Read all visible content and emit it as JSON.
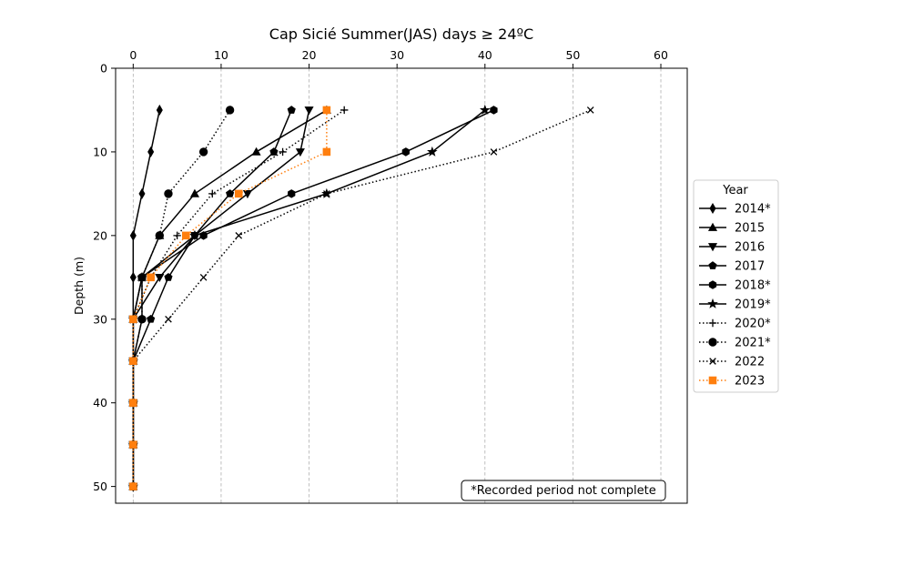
{
  "chart_data": {
    "type": "line",
    "title": "Cap Sicié Summer(JAS) days ≥ 24ºC",
    "xlabel": "",
    "ylabel": "Depth (m)",
    "x_axis_position": "top",
    "y_inverted": true,
    "xlim": [
      -2,
      63
    ],
    "ylim": [
      52,
      0
    ],
    "xticks": [
      0,
      10,
      20,
      30,
      40,
      50,
      60
    ],
    "yticks": [
      0,
      10,
      20,
      30,
      40,
      50
    ],
    "x_grid": "dashed-vertical",
    "depths": [
      5,
      10,
      15,
      20,
      25,
      30,
      35,
      40,
      45,
      50
    ],
    "legend_title": "Year",
    "legend_position": "right-outside",
    "annotation": "*Recorded period not complete",
    "series": [
      {
        "name": "2014*",
        "marker": "diamond",
        "style": "solid",
        "color": "#000000",
        "values": [
          3,
          2,
          1,
          0,
          0,
          0,
          0,
          0,
          0,
          0
        ]
      },
      {
        "name": "2015",
        "marker": "triangle-up",
        "style": "solid",
        "color": "#000000",
        "values": [
          22,
          14,
          7,
          3,
          1,
          0,
          0,
          0,
          0,
          0
        ]
      },
      {
        "name": "2016",
        "marker": "triangle-down",
        "style": "solid",
        "color": "#000000",
        "values": [
          20,
          19,
          13,
          7,
          3,
          0,
          0,
          0,
          0,
          0
        ]
      },
      {
        "name": "2017",
        "marker": "pentagon",
        "style": "solid",
        "color": "#000000",
        "values": [
          18,
          16,
          11,
          7,
          4,
          2,
          0,
          0,
          0,
          0
        ]
      },
      {
        "name": "2018*",
        "marker": "hexagon",
        "style": "solid",
        "color": "#000000",
        "values": [
          41,
          31,
          18,
          8,
          1,
          1,
          0,
          0,
          0,
          0
        ]
      },
      {
        "name": "2019*",
        "marker": "star",
        "style": "solid",
        "color": "#000000",
        "values": [
          40,
          34,
          22,
          7,
          1,
          0,
          0,
          0,
          0,
          0
        ]
      },
      {
        "name": "2020*",
        "marker": "plus",
        "style": "dotted",
        "color": "#000000",
        "values": [
          24,
          17,
          9,
          5,
          2,
          0,
          0,
          0,
          0,
          0
        ]
      },
      {
        "name": "2021*",
        "marker": "circle",
        "style": "dotted",
        "color": "#000000",
        "values": [
          11,
          8,
          4,
          3,
          1,
          1,
          0,
          0,
          0,
          0
        ]
      },
      {
        "name": "2022",
        "marker": "x",
        "style": "dotted",
        "color": "#000000",
        "values": [
          52,
          41,
          22,
          12,
          8,
          4,
          0,
          0,
          0,
          0
        ]
      },
      {
        "name": "2023",
        "marker": "square",
        "style": "dotted",
        "color": "#ff7f0e",
        "values": [
          22,
          22,
          12,
          6,
          2,
          0,
          0,
          0,
          0,
          0
        ]
      }
    ]
  }
}
